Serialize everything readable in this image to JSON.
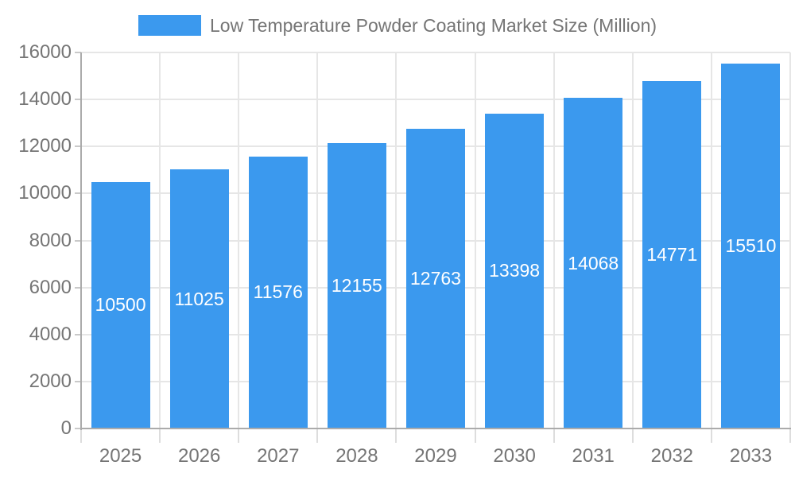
{
  "chart_data": {
    "type": "bar",
    "title": "Low Temperature Powder Coating Market Size (Million)",
    "legend": {
      "position": "top",
      "entries": [
        "Low Temperature Powder Coating Market Size (Million)"
      ]
    },
    "categories": [
      "2025",
      "2026",
      "2027",
      "2028",
      "2029",
      "2030",
      "2031",
      "2032",
      "2033"
    ],
    "values": [
      10500,
      11025,
      11576,
      12155,
      12763,
      13398,
      14068,
      14771,
      15510
    ],
    "value_labels_position": "inside-center",
    "xlabel": "",
    "ylabel": "",
    "ylim": [
      0,
      16000
    ],
    "ytick_step": 2000,
    "yticks": [
      0,
      2000,
      4000,
      6000,
      8000,
      10000,
      12000,
      14000,
      16000
    ],
    "grid": true,
    "colors": {
      "bar": "#3B99EE",
      "axis_text": "#757575",
      "grid_line": "#E6E6E6",
      "axis_line": "#ABABAB",
      "tick_line": "#C9C9C9",
      "value_label": "#FFFFFF",
      "background": "#FFFFFF"
    }
  }
}
